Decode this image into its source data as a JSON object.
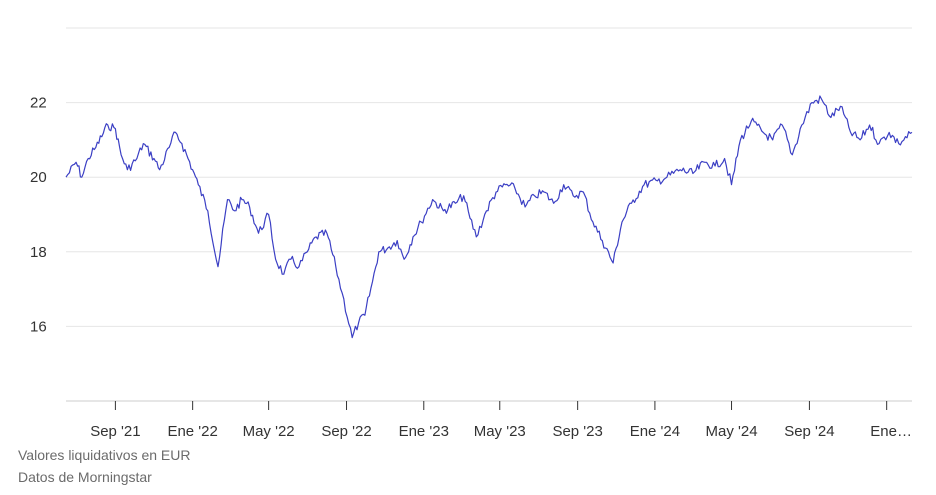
{
  "chart_data": {
    "type": "line",
    "title": "",
    "xlabel": "",
    "ylabel": "",
    "ylim": [
      14,
      24
    ],
    "y_ticks": [
      16,
      18,
      20,
      22
    ],
    "grid": true,
    "x_range": [
      "2021-06-15",
      "2025-02-10"
    ],
    "x_tick_dates": [
      "2021-09-01",
      "2022-01-01",
      "2022-05-01",
      "2022-09-01",
      "2023-01-01",
      "2023-05-01",
      "2023-09-01",
      "2024-01-01",
      "2024-05-01",
      "2024-09-01",
      "2025-01-01"
    ],
    "x_tick_labels": [
      "Sep '21",
      "Ene '22",
      "May '22",
      "Sep '22",
      "Ene '23",
      "May '23",
      "Sep '23",
      "Ene '24",
      "May '24",
      "Sep '24",
      "Ene…"
    ],
    "line_color": "#3b3fc4",
    "series": [
      {
        "x": [
          "2021-06-15",
          "2021-07-01",
          "2021-07-10",
          "2021-07-20",
          "2021-08-01",
          "2021-08-20",
          "2021-09-01",
          "2021-09-10",
          "2021-09-20",
          "2021-10-05",
          "2021-10-15",
          "2021-11-01",
          "2021-11-10",
          "2021-11-25",
          "2021-12-05",
          "2021-12-15",
          "2022-01-01",
          "2022-01-10",
          "2022-01-25",
          "2022-02-10",
          "2022-02-25",
          "2022-03-08",
          "2022-03-20",
          "2022-04-01",
          "2022-04-15",
          "2022-05-01",
          "2022-05-12",
          "2022-05-25",
          "2022-06-05",
          "2022-06-18",
          "2022-07-01",
          "2022-07-15",
          "2022-08-01",
          "2022-08-15",
          "2022-08-25",
          "2022-09-10",
          "2022-09-20",
          "2022-09-30",
          "2022-10-12",
          "2022-10-22",
          "2022-11-05",
          "2022-11-20",
          "2022-12-01",
          "2022-12-15",
          "2022-12-28",
          "2023-01-15",
          "2023-02-01",
          "2023-02-20",
          "2023-03-05",
          "2023-03-15",
          "2023-03-25",
          "2023-04-10",
          "2023-04-25",
          "2023-05-10",
          "2023-05-25",
          "2023-06-10",
          "2023-06-25",
          "2023-07-10",
          "2023-07-25",
          "2023-08-10",
          "2023-08-25",
          "2023-09-10",
          "2023-09-25",
          "2023-10-10",
          "2023-10-27",
          "2023-11-10",
          "2023-11-25",
          "2023-12-15",
          "2024-01-05",
          "2024-01-20",
          "2024-02-10",
          "2024-03-01",
          "2024-03-20",
          "2024-04-05",
          "2024-04-20",
          "2024-05-01",
          "2024-05-15",
          "2024-06-01",
          "2024-06-20",
          "2024-07-05",
          "2024-07-20",
          "2024-08-05",
          "2024-08-20",
          "2024-09-05",
          "2024-09-20",
          "2024-10-05",
          "2024-10-20",
          "2024-11-05",
          "2024-11-20",
          "2024-12-05",
          "2024-12-20",
          "2025-01-05",
          "2025-01-20",
          "2025-02-10"
        ],
        "values": [
          20.0,
          20.4,
          20.0,
          20.5,
          20.8,
          21.4,
          21.3,
          20.6,
          20.2,
          20.5,
          20.9,
          20.5,
          20.2,
          20.8,
          21.2,
          20.9,
          20.2,
          19.8,
          19.1,
          17.6,
          19.4,
          19.1,
          19.4,
          19.2,
          18.5,
          19.0,
          17.8,
          17.4,
          17.8,
          17.6,
          18.0,
          18.4,
          18.5,
          17.6,
          16.9,
          15.7,
          16.1,
          16.3,
          17.2,
          18.0,
          18.1,
          18.3,
          17.8,
          18.4,
          18.8,
          19.4,
          19.1,
          19.3,
          19.5,
          18.9,
          18.4,
          19.1,
          19.6,
          19.8,
          19.7,
          19.2,
          19.5,
          19.6,
          19.3,
          19.8,
          19.5,
          19.6,
          18.8,
          18.3,
          17.7,
          18.8,
          19.3,
          19.8,
          19.9,
          20.0,
          20.2,
          20.1,
          20.4,
          20.3,
          20.5,
          19.8,
          21.0,
          21.5,
          21.2,
          21.0,
          21.4,
          20.6,
          21.4,
          22.0,
          22.1,
          21.6,
          21.9,
          21.2,
          21.0,
          21.4,
          20.9,
          21.2,
          20.9,
          21.2
        ]
      }
    ]
  },
  "footer": {
    "currency_note": "Valores liquidativos en EUR",
    "source_note": "Datos de Morningstar"
  }
}
